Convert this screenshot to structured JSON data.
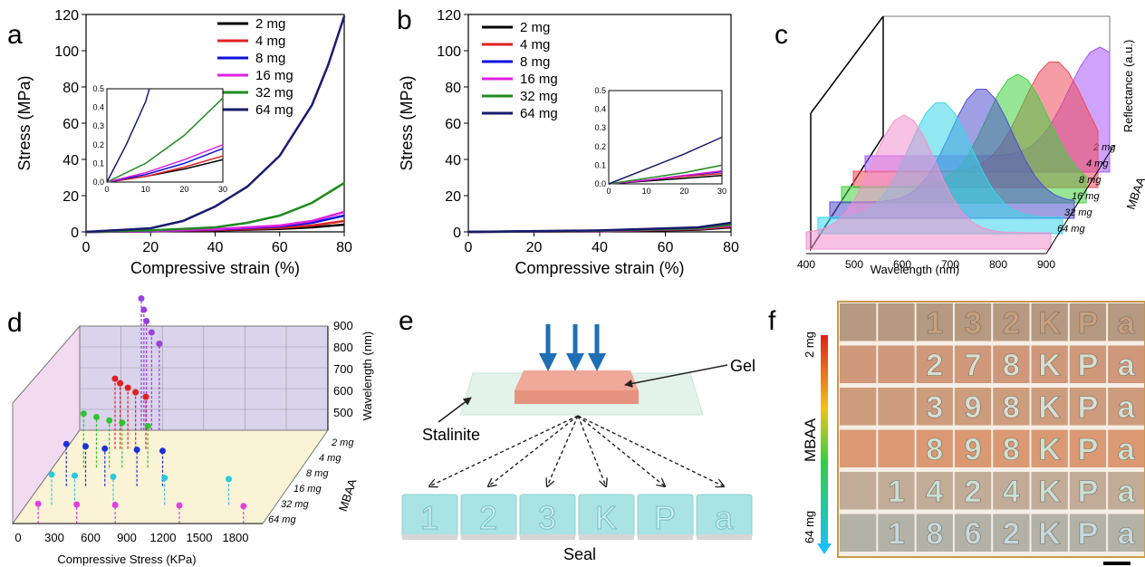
{
  "panels": {
    "a": "a",
    "b": "b",
    "c": "c",
    "d": "d",
    "e": "e",
    "f": "f"
  },
  "chart_data": [
    {
      "panel": "a",
      "type": "line",
      "xlabel": "Compressive strain (%)",
      "ylabel": "Stress (MPa)",
      "xlim": [
        0,
        80
      ],
      "ylim": [
        0,
        120
      ],
      "xticks": [
        "0",
        "20",
        "40",
        "60",
        "80"
      ],
      "yticks": [
        "0",
        "20",
        "40",
        "60",
        "80",
        "100",
        "120"
      ],
      "legend_position": "top-right",
      "series": [
        {
          "name": "2 mg",
          "color": "#000000",
          "x": [
            0,
            20,
            40,
            60,
            70,
            80
          ],
          "y": [
            0,
            0.3,
            0.8,
            1.6,
            2.5,
            4
          ]
        },
        {
          "name": "4 mg",
          "color": "#e02020",
          "x": [
            0,
            20,
            40,
            60,
            70,
            80
          ],
          "y": [
            0,
            0.3,
            1.0,
            2.2,
            3.5,
            6
          ]
        },
        {
          "name": "8 mg",
          "color": "#1010e0",
          "x": [
            0,
            20,
            40,
            60,
            70,
            80
          ],
          "y": [
            0,
            0.4,
            1.3,
            3,
            5,
            9
          ]
        },
        {
          "name": "16 mg",
          "color": "#e020e0",
          "x": [
            0,
            20,
            40,
            60,
            70,
            80
          ],
          "y": [
            0,
            0.5,
            1.5,
            3.5,
            6,
            11
          ]
        },
        {
          "name": "32 mg",
          "color": "#1f8a1f",
          "x": [
            0,
            20,
            40,
            50,
            60,
            70,
            80
          ],
          "y": [
            0,
            0.8,
            2.5,
            5,
            9,
            16,
            27
          ]
        },
        {
          "name": "64 mg",
          "color": "#1a1a6e",
          "x": [
            0,
            20,
            30,
            40,
            50,
            60,
            70,
            75,
            80
          ],
          "y": [
            0,
            2,
            6,
            14,
            25,
            42,
            70,
            92,
            119
          ]
        }
      ],
      "inset": {
        "xlim": [
          0,
          30
        ],
        "ylim": [
          0,
          0.5
        ],
        "xticks": [
          "0",
          "10",
          "20",
          "30"
        ],
        "yticks": [
          "0.0",
          "0.1",
          "0.2",
          "0.3",
          "0.4",
          "0.5"
        ],
        "series": [
          {
            "color": "#000000",
            "x": [
              0,
              10,
              20,
              30
            ],
            "y": [
              0,
              0.03,
              0.07,
              0.12
            ]
          },
          {
            "color": "#e02020",
            "x": [
              0,
              10,
              20,
              30
            ],
            "y": [
              0,
              0.03,
              0.08,
              0.14
            ]
          },
          {
            "color": "#1010e0",
            "x": [
              0,
              10,
              20,
              30
            ],
            "y": [
              0,
              0.04,
              0.1,
              0.18
            ]
          },
          {
            "color": "#e020e0",
            "x": [
              0,
              10,
              20,
              30
            ],
            "y": [
              0,
              0.05,
              0.12,
              0.2
            ]
          },
          {
            "color": "#1f8a1f",
            "x": [
              0,
              10,
              20,
              30
            ],
            "y": [
              0,
              0.1,
              0.25,
              0.45
            ]
          },
          {
            "color": "#1a1a6e",
            "x": [
              0,
              5,
              10,
              11
            ],
            "y": [
              0,
              0.2,
              0.43,
              0.5
            ]
          }
        ]
      }
    },
    {
      "panel": "b",
      "type": "line",
      "xlabel": "Compressive strain (%)",
      "ylabel": "Stress (MPa)",
      "xlim": [
        0,
        80
      ],
      "ylim": [
        0,
        120
      ],
      "xticks": [
        "0",
        "20",
        "40",
        "60",
        "80"
      ],
      "yticks": [
        "0",
        "20",
        "40",
        "60",
        "80",
        "100",
        "120"
      ],
      "legend_position": "top-left",
      "series": [
        {
          "name": "2 mg",
          "color": "#000000",
          "x": [
            0,
            40,
            70,
            80
          ],
          "y": [
            0,
            0.3,
            1.2,
            2.5
          ]
        },
        {
          "name": "4 mg",
          "color": "#e02020",
          "x": [
            0,
            40,
            70,
            80
          ],
          "y": [
            0,
            0.4,
            1.5,
            3
          ]
        },
        {
          "name": "8 mg",
          "color": "#1010e0",
          "x": [
            0,
            40,
            70,
            80
          ],
          "y": [
            0,
            0.5,
            1.8,
            3.5
          ]
        },
        {
          "name": "16 mg",
          "color": "#e020e0",
          "x": [
            0,
            40,
            70,
            80
          ],
          "y": [
            0,
            0.5,
            1.8,
            3.5
          ]
        },
        {
          "name": "32 mg",
          "color": "#1f8a1f",
          "x": [
            0,
            40,
            70,
            80
          ],
          "y": [
            0,
            0.6,
            2,
            4
          ]
        },
        {
          "name": "64 mg",
          "color": "#1a1a6e",
          "x": [
            0,
            40,
            70,
            80
          ],
          "y": [
            0,
            0.8,
            2.5,
            5
          ]
        }
      ],
      "inset": {
        "xlim": [
          0,
          30
        ],
        "ylim": [
          0,
          0.5
        ],
        "xticks": [
          "0",
          "10",
          "20",
          "30"
        ],
        "yticks": [
          "0.0",
          "0.1",
          "0.2",
          "0.3",
          "0.4",
          "0.5"
        ],
        "series": [
          {
            "color": "#000000",
            "x": [
              0,
              10,
              20,
              30
            ],
            "y": [
              0,
              0.015,
              0.03,
              0.045
            ]
          },
          {
            "color": "#e02020",
            "x": [
              0,
              10,
              20,
              30
            ],
            "y": [
              0,
              0.02,
              0.04,
              0.055
            ]
          },
          {
            "color": "#1010e0",
            "x": [
              0,
              10,
              20,
              30
            ],
            "y": [
              0,
              0.02,
              0.045,
              0.065
            ]
          },
          {
            "color": "#e020e0",
            "x": [
              0,
              10,
              20,
              30
            ],
            "y": [
              0,
              0.02,
              0.045,
              0.07
            ]
          },
          {
            "color": "#1f8a1f",
            "x": [
              0,
              10,
              20,
              30
            ],
            "y": [
              0,
              0.03,
              0.06,
              0.1
            ]
          },
          {
            "color": "#1a1a6e",
            "x": [
              0,
              10,
              20,
              30
            ],
            "y": [
              0,
              0.08,
              0.16,
              0.25
            ]
          }
        ]
      }
    },
    {
      "panel": "c",
      "type": "area",
      "xlabel": "Wavelength (nm)",
      "ylabel": "Reflectance (a.u.)",
      "zlabel": "MBAA",
      "xlim": [
        400,
        900
      ],
      "xticks": [
        "400",
        "500",
        "600",
        "700",
        "800",
        "900"
      ],
      "series": [
        {
          "name": "2 mg",
          "color": "#a855f7",
          "peak": 880
        },
        {
          "name": "4 mg",
          "color": "#ef4a5a",
          "peak": 810
        },
        {
          "name": "8 mg",
          "color": "#3fd23f",
          "peak": 760
        },
        {
          "name": "16 mg",
          "color": "#5050d0",
          "peak": 710
        },
        {
          "name": "32 mg",
          "color": "#37d6e8",
          "peak": 650
        },
        {
          "name": "64 mg",
          "color": "#f28fcf",
          "peak": 600
        }
      ]
    },
    {
      "panel": "d",
      "type": "scatter",
      "xlabel": "Compressive Stress (KPa)",
      "ylabel": "Wavelength (nm)",
      "zlabel": "MBAA",
      "xticks": [
        "0",
        "300",
        "600",
        "900",
        "1200",
        "1500",
        "1800"
      ],
      "yticks": [
        "500",
        "600",
        "700",
        "800",
        "900"
      ],
      "zticks": [
        "2 mg",
        "4 mg",
        "8 mg",
        "16 mg",
        "32 mg",
        "64 mg"
      ],
      "series": [
        {
          "name": "2 mg",
          "color": "#9a3fe0",
          "marker": "square",
          "x": [
            480,
            500,
            520,
            560,
            620
          ],
          "y": [
            840,
            790,
            740,
            690,
            640
          ]
        },
        {
          "name": "4 mg",
          "color": "#e02020",
          "marker": "circle",
          "x": [
            360,
            400,
            460,
            520,
            600
          ],
          "y": [
            600,
            580,
            560,
            540,
            520
          ]
        },
        {
          "name": "8 mg",
          "color": "#2ec42e",
          "marker": "triangle-up",
          "x": [
            200,
            300,
            400,
            500,
            700
          ],
          "y": [
            560,
            545,
            530,
            520,
            505
          ]
        },
        {
          "name": "16 mg",
          "color": "#1c2fd8",
          "marker": "triangle-down",
          "x": [
            150,
            300,
            450,
            700,
            900
          ],
          "y": [
            540,
            530,
            520,
            515,
            510
          ]
        },
        {
          "name": "32 mg",
          "color": "#28c8e0",
          "marker": "circle",
          "x": [
            120,
            300,
            600,
            1000,
            1500
          ],
          "y": [
            520,
            515,
            510,
            505,
            500
          ]
        },
        {
          "name": "64 mg",
          "color": "#e040e0",
          "marker": "triangle-left",
          "x": [
            100,
            400,
            700,
            1200,
            1700
          ],
          "y": [
            505,
            502,
            500,
            498,
            495
          ]
        }
      ]
    }
  ],
  "e": {
    "gel": "Gel",
    "stalinite": "Stalinite",
    "seal": "Seal",
    "letters": [
      "1",
      "2",
      "3",
      "K",
      "P",
      "a"
    ]
  },
  "f": {
    "label_top": "2 mg",
    "label_mid": "MBAA",
    "label_bottom": "64 mg",
    "rows": [
      [
        "",
        "",
        "1",
        "3",
        "2",
        "K",
        "P",
        "a"
      ],
      [
        "",
        "",
        "2",
        "7",
        "8",
        "K",
        "P",
        "a"
      ],
      [
        "",
        "",
        "3",
        "9",
        "8",
        "K",
        "P",
        "a"
      ],
      [
        "",
        "",
        "8",
        "9",
        "8",
        "K",
        "P",
        "a"
      ],
      [
        "",
        "1",
        "4",
        "2",
        "4",
        "K",
        "P",
        "a"
      ],
      [
        "",
        "1",
        "8",
        "6",
        "2",
        "K",
        "P",
        "a"
      ]
    ]
  }
}
